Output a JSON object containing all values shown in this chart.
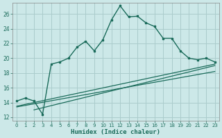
{
  "title": "",
  "xlabel": "Humidex (Indice chaleur)",
  "bg_color": "#cce8e8",
  "grid_color": "#aacccc",
  "line_color": "#1a6b5a",
  "xlim": [
    -0.5,
    23.5
  ],
  "ylim": [
    11.5,
    27.5
  ],
  "yticks": [
    12,
    14,
    16,
    18,
    20,
    22,
    24,
    26
  ],
  "xticks": [
    0,
    1,
    2,
    3,
    4,
    5,
    6,
    7,
    8,
    9,
    10,
    11,
    12,
    13,
    14,
    15,
    16,
    17,
    18,
    19,
    20,
    21,
    22,
    23
  ],
  "main_x": [
    0,
    1,
    2,
    3,
    4,
    5,
    6,
    7,
    8,
    9,
    10,
    11,
    12,
    13,
    14,
    15,
    16,
    17,
    18,
    19,
    20,
    21,
    22,
    23
  ],
  "main_y": [
    14.2,
    14.6,
    14.2,
    12.4,
    19.2,
    19.5,
    20.0,
    21.5,
    22.3,
    21.0,
    22.5,
    25.2,
    27.1,
    25.6,
    25.7,
    24.8,
    24.3,
    22.7,
    22.7,
    21.0,
    20.0,
    19.8,
    20.0,
    19.5
  ],
  "line1_x": [
    0,
    23
  ],
  "line1_y": [
    13.5,
    19.2
  ],
  "line2_x": [
    2,
    23
  ],
  "line2_y": [
    13.0,
    19.0
  ],
  "line3_x": [
    0,
    23
  ],
  "line3_y": [
    13.4,
    18.2
  ]
}
